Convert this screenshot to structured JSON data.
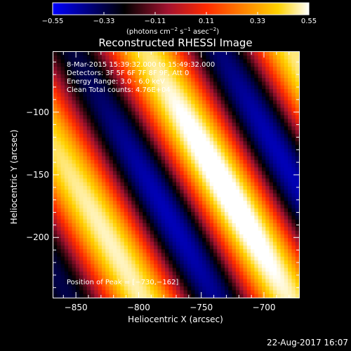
{
  "window": {
    "date_stamp": "22-Aug-2017 16:07"
  },
  "colorbar": {
    "ticks": [
      -0.55,
      -0.33,
      -0.11,
      0.11,
      0.33,
      0.55
    ],
    "tick_labels": [
      "−0.55",
      "−0.33",
      "−0.11",
      "0.11",
      "0.33",
      "0.55"
    ],
    "units_prefix": "(photons cm",
    "units_exp1": "−2",
    "units_mid1": " s",
    "units_exp2": "−1",
    "units_mid2": " asec",
    "units_exp3": "−2",
    "units_suffix": ")"
  },
  "chart_data": {
    "type": "heatmap",
    "title": "Reconstructed RHESSI Image",
    "xlabel": "Heliocentric X (arcsec)",
    "ylabel": "Heliocentric Y (arcsec)",
    "xlim": [
      -868,
      -672
    ],
    "ylim": [
      -248,
      -52
    ],
    "x_ticks": [
      -850,
      -800,
      -750,
      -700
    ],
    "x_tick_labels": [
      "−850",
      "−800",
      "−750",
      "−700"
    ],
    "y_ticks": [
      -100,
      -150,
      -200
    ],
    "y_tick_labels": [
      "−100",
      "−150",
      "−200"
    ],
    "value_range": [
      -0.55,
      0.55
    ],
    "colormap": [
      "#0000ff",
      "#000000",
      "#a3122f",
      "#ff2a00",
      "#ff8000",
      "#ffd200",
      "#ffffff"
    ],
    "peak": {
      "x": -730,
      "y": -162
    },
    "info_lines": [
      "8-Mar-2015 15:39:32.000 to 15:49:32.000",
      "Detectors: 3F 5F 6F 7F 8F 9F, Att 0",
      "Energy Range: 3.0 - 6.0 keV",
      "Clean     Total counts: 4.76E+04"
    ],
    "peak_label": "Position of Peak = [−730,−162]"
  }
}
